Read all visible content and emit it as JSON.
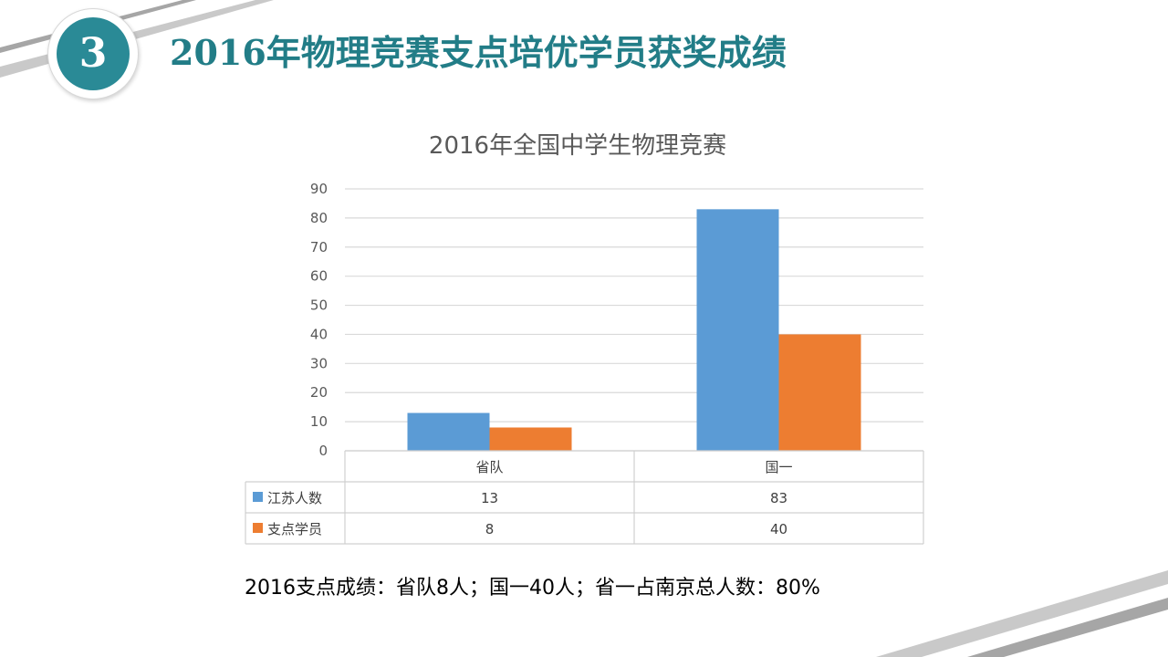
{
  "slide": {
    "badge_number": "3",
    "title": "2016年物理竞赛支点培优学员获奖成绩",
    "footnote": "2016支点成绩：省队8人；国一40人；省一占南京总人数：80%"
  },
  "colors": {
    "title": "#227d87",
    "badge": "#2a8a96",
    "series_1": "#5b9bd5",
    "series_2": "#ed7d31",
    "grid": "#d9d9d9",
    "decor_stripe": "#b3b3b3"
  },
  "chart_data": {
    "type": "bar",
    "title": "2016年全国中学生物理竞赛",
    "categories": [
      "省队",
      "国一"
    ],
    "series": [
      {
        "name": "江苏人数",
        "values": [
          13,
          83
        ]
      },
      {
        "name": "支点学员",
        "values": [
          8,
          40
        ]
      }
    ],
    "ylim": [
      0,
      90
    ],
    "yticks": [
      0,
      10,
      20,
      30,
      40,
      50,
      60,
      70,
      80,
      90
    ],
    "grid": true,
    "legend": "data-table",
    "data_table": true
  }
}
